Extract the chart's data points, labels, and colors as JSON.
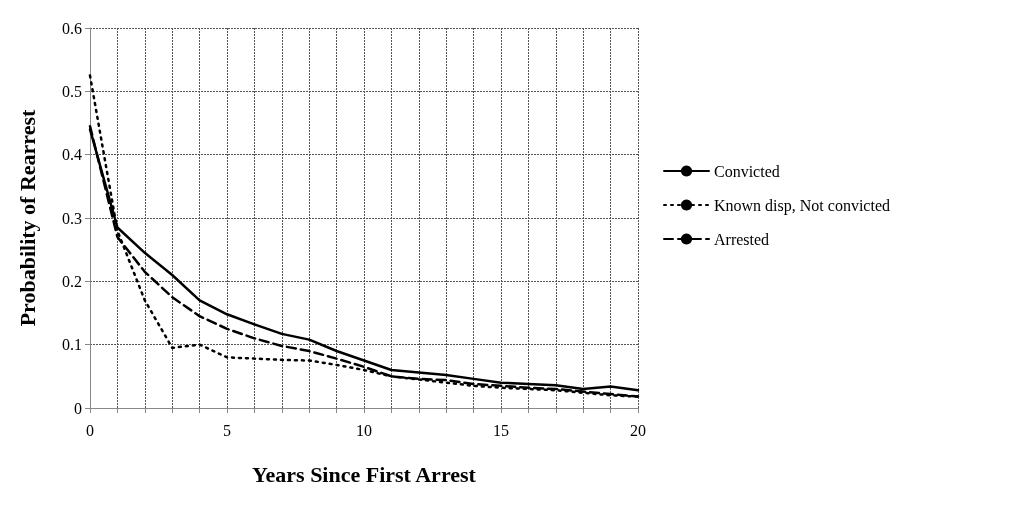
{
  "chart_data": {
    "type": "line",
    "xlabel": "Years Since First Arrest",
    "ylabel": "Probability of Rearrest",
    "x": [
      0,
      1,
      2,
      3,
      4,
      5,
      6,
      7,
      8,
      9,
      10,
      11,
      12,
      13,
      14,
      15,
      16,
      17,
      18,
      19,
      20
    ],
    "series": [
      {
        "name": "Convicted",
        "color": "#000000",
        "line_style": "solid",
        "values": [
          0.44,
          0.285,
          0.245,
          0.21,
          0.17,
          0.148,
          0.132,
          0.117,
          0.108,
          0.09,
          0.075,
          0.06,
          0.056,
          0.052,
          0.046,
          0.04,
          0.038,
          0.036,
          0.03,
          0.034,
          0.028
        ]
      },
      {
        "name": "Known disp, Not convicted",
        "color": "#000000",
        "line_style": "dotted",
        "values": [
          0.525,
          0.28,
          0.17,
          0.095,
          0.1,
          0.08,
          0.078,
          0.076,
          0.075,
          0.068,
          0.06,
          0.05,
          0.045,
          0.04,
          0.035,
          0.032,
          0.03,
          0.028,
          0.024,
          0.02,
          0.018
        ]
      },
      {
        "name": "Arrested",
        "color": "#000000",
        "line_style": "dashed",
        "values": [
          0.445,
          0.27,
          0.215,
          0.175,
          0.145,
          0.125,
          0.11,
          0.098,
          0.09,
          0.078,
          0.065,
          0.05,
          0.046,
          0.044,
          0.038,
          0.035,
          0.032,
          0.03,
          0.026,
          0.022,
          0.018
        ]
      }
    ],
    "xlim": [
      0,
      20
    ],
    "xticks": [
      0,
      {
        "value": 1,
        "label": null
      },
      {
        "value": 2,
        "label": null
      },
      {
        "value": 3,
        "label": null
      },
      {
        "value": 4,
        "label": null
      },
      5,
      {
        "value": 6,
        "label": null
      },
      {
        "value": 7,
        "label": null
      },
      {
        "value": 8,
        "label": null
      },
      {
        "value": 9,
        "label": null
      },
      10,
      {
        "value": 11,
        "label": null
      },
      {
        "value": 12,
        "label": null
      },
      {
        "value": 13,
        "label": null
      },
      {
        "value": 14,
        "label": null
      },
      15,
      {
        "value": 16,
        "label": null
      },
      {
        "value": 17,
        "label": null
      },
      {
        "value": 18,
        "label": null
      },
      {
        "value": 19,
        "label": null
      },
      20
    ],
    "ylim": [
      0,
      0.6
    ],
    "yticks": [
      0,
      0.1,
      0.2,
      0.3,
      0.4,
      0.5,
      0.6
    ],
    "grid": true,
    "legend": "right",
    "marker": "none"
  }
}
